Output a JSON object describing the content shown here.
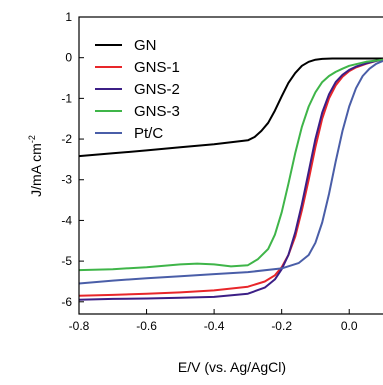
{
  "chart_data": {
    "type": "line",
    "xlabel": "E/V (vs. Ag/AgCl)",
    "ylabel_base": "J/mA cm",
    "ylabel_sup": "-2",
    "xlim": [
      -0.8,
      0.1
    ],
    "ylim": [
      -6.3,
      1.0
    ],
    "xticks": [
      -0.8,
      -0.6,
      -0.4,
      -0.2,
      0.0
    ],
    "xtick_labels": [
      "-0.8",
      "-0.6",
      "-0.4",
      "-0.2",
      "0.0"
    ],
    "yticks": [
      1,
      0,
      -1,
      -2,
      -3,
      -4,
      -5,
      -6
    ],
    "ytick_labels": [
      "1",
      "0",
      "-1",
      "-2",
      "-3",
      "-4",
      "-5",
      "-6"
    ],
    "grid": false,
    "legend_position": "top-left",
    "series": [
      {
        "name": "GN",
        "color": "#000000",
        "x": [
          -0.8,
          -0.7,
          -0.6,
          -0.5,
          -0.4,
          -0.35,
          -0.3,
          -0.28,
          -0.26,
          -0.24,
          -0.22,
          -0.2,
          -0.18,
          -0.16,
          -0.14,
          -0.12,
          -0.1,
          -0.08,
          -0.05,
          -0.02,
          0.0,
          0.05,
          0.1
        ],
        "y": [
          -2.42,
          -2.35,
          -2.28,
          -2.2,
          -2.13,
          -2.08,
          -2.03,
          -1.95,
          -1.8,
          -1.6,
          -1.3,
          -0.95,
          -0.62,
          -0.38,
          -0.2,
          -0.1,
          -0.05,
          -0.03,
          -0.02,
          -0.02,
          -0.02,
          -0.02,
          -0.02
        ]
      },
      {
        "name": "GNS-1",
        "color": "#e8262a",
        "x": [
          -0.8,
          -0.7,
          -0.6,
          -0.5,
          -0.4,
          -0.3,
          -0.25,
          -0.22,
          -0.2,
          -0.18,
          -0.16,
          -0.14,
          -0.12,
          -0.1,
          -0.08,
          -0.06,
          -0.04,
          -0.02,
          0.0,
          0.02,
          0.05,
          0.08,
          0.1
        ],
        "y": [
          -5.85,
          -5.83,
          -5.8,
          -5.77,
          -5.72,
          -5.63,
          -5.5,
          -5.35,
          -5.15,
          -4.85,
          -4.4,
          -3.75,
          -3.0,
          -2.2,
          -1.5,
          -1.0,
          -0.68,
          -0.47,
          -0.33,
          -0.24,
          -0.15,
          -0.08,
          -0.05
        ]
      },
      {
        "name": "GNS-2",
        "color": "#3c1f86",
        "x": [
          -0.8,
          -0.7,
          -0.6,
          -0.5,
          -0.4,
          -0.3,
          -0.25,
          -0.22,
          -0.2,
          -0.18,
          -0.16,
          -0.14,
          -0.12,
          -0.1,
          -0.08,
          -0.06,
          -0.04,
          -0.02,
          0.0,
          0.02,
          0.05,
          0.08,
          0.1
        ],
        "y": [
          -5.95,
          -5.93,
          -5.92,
          -5.9,
          -5.88,
          -5.8,
          -5.65,
          -5.45,
          -5.2,
          -4.85,
          -4.3,
          -3.6,
          -2.8,
          -2.0,
          -1.35,
          -0.9,
          -0.6,
          -0.42,
          -0.3,
          -0.22,
          -0.14,
          -0.08,
          -0.05
        ]
      },
      {
        "name": "GNS-3",
        "color": "#3fb549",
        "x": [
          -0.8,
          -0.7,
          -0.6,
          -0.5,
          -0.45,
          -0.4,
          -0.35,
          -0.3,
          -0.27,
          -0.24,
          -0.22,
          -0.2,
          -0.18,
          -0.16,
          -0.14,
          -0.12,
          -0.1,
          -0.08,
          -0.06,
          -0.04,
          -0.02,
          0.0,
          0.05,
          0.1
        ],
        "y": [
          -5.22,
          -5.2,
          -5.15,
          -5.08,
          -5.06,
          -5.08,
          -5.13,
          -5.1,
          -4.95,
          -4.7,
          -4.35,
          -3.8,
          -3.1,
          -2.35,
          -1.7,
          -1.2,
          -0.85,
          -0.6,
          -0.45,
          -0.35,
          -0.27,
          -0.2,
          -0.1,
          -0.05
        ]
      },
      {
        "name": "Pt/C",
        "color": "#4a5ea8",
        "x": [
          -0.8,
          -0.7,
          -0.6,
          -0.5,
          -0.4,
          -0.3,
          -0.2,
          -0.15,
          -0.12,
          -0.1,
          -0.08,
          -0.06,
          -0.04,
          -0.02,
          0.0,
          0.02,
          0.04,
          0.06,
          0.08,
          0.1
        ],
        "y": [
          -5.55,
          -5.48,
          -5.42,
          -5.37,
          -5.32,
          -5.27,
          -5.18,
          -5.05,
          -4.85,
          -4.55,
          -4.05,
          -3.35,
          -2.55,
          -1.8,
          -1.2,
          -0.75,
          -0.45,
          -0.27,
          -0.15,
          -0.08
        ]
      }
    ]
  }
}
